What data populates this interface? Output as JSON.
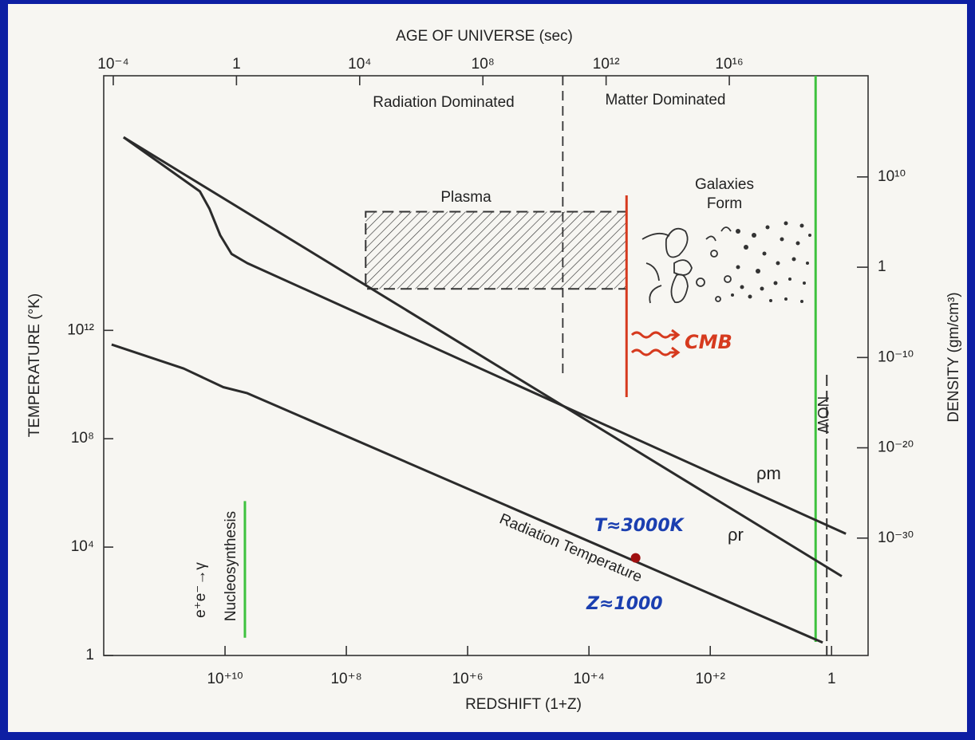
{
  "chart_data": {
    "type": "line",
    "title": "AGE OF UNIVERSE (sec)",
    "xlabel": "REDSHIFT (1+Z)",
    "ylabel": "TEMPERATURE (°K)",
    "y2label": "DENSITY (gm/cm³)",
    "xscale": "log",
    "yscale": "log",
    "y2scale": "log",
    "x2scale": "log",
    "xlim": [
      1000000000000.0,
      0.25
    ],
    "xticks": [
      {
        "value": 10000000000.0,
        "label": "10⁺¹⁰"
      },
      {
        "value": 100000000.0,
        "label": "10⁺⁸"
      },
      {
        "value": 1000000.0,
        "label": "10⁺⁶"
      },
      {
        "value": 10000.0,
        "label": "10⁺⁴"
      },
      {
        "value": 100,
        "label": "10⁺²"
      },
      1
    ],
    "x2lim": [
      4.9e-05,
      3.2e+20
    ],
    "x2ticks": [
      {
        "value": 0.0001,
        "label": "10⁻⁴"
      },
      1,
      {
        "value": 10000.0,
        "label": "10⁴"
      },
      {
        "value": 100000000.0,
        "label": "10⁸"
      },
      {
        "value": 1000000000000.0,
        "label": "10¹²"
      },
      {
        "value": 1e+16,
        "label": "10¹⁶"
      }
    ],
    "ylim": [
      1,
      2.5e+21
    ],
    "yticks": [
      1,
      {
        "value": 10000.0,
        "label": "10⁴"
      },
      {
        "value": 100000000.0,
        "label": "10⁸"
      },
      {
        "value": 1000000000000.0,
        "label": "10¹²"
      }
    ],
    "y2lim": [
      1e-43,
      1.6e+21
    ],
    "y2ticks": [
      {
        "value": 10000000000.0,
        "label": "10¹⁰"
      },
      1,
      {
        "value": 1e-10,
        "label": "10⁻¹⁰"
      },
      {
        "value": 1e-20,
        "label": "10⁻²⁰"
      },
      {
        "value": 1e-30,
        "label": "10⁻³⁰"
      }
    ],
    "series": [
      {
        "name": "Radiation Temperature",
        "color": "#2b2b2b",
        "x": [
          740000000000.0,
          48000000000.0,
          10700000000.0,
          4300000000.0,
          1.4
        ],
        "values": [
          300000000000.0,
          39000000000.0,
          8000000000.0,
          4800000000.0,
          3
        ]
      },
      {
        "name": "ρm",
        "color": "#2b2b2b",
        "axis": "y2",
        "x": [
          470000000000.0,
          26000000000.0,
          18000000000.0,
          12000000000.0,
          7800000000.0,
          4300000000.0,
          0.58
        ],
        "values": [
          250000000000000.0,
          250000000.0,
          2900000.0,
          3500,
          30,
          2.8,
          3e-30
        ]
      },
      {
        "name": "ρr",
        "color": "#2b2b2b",
        "axis": "y2",
        "x": [
          470000000000.0,
          0.68
        ],
        "values": [
          250000000000000.0,
          6e-35
        ]
      }
    ],
    "point": {
      "x": 1700,
      "y": 4000,
      "color": "#a01010",
      "labels": [
        "T≈3000K",
        "Z≈1000"
      ]
    },
    "eras": {
      "x": 27000,
      "labels": [
        "Radiation Dominated",
        "Matter Dominated"
      ]
    },
    "plasma": {
      "label": "Plasma",
      "x": [
        48000000.0,
        2400
      ],
      "y": [
        2.4e+16,
        34000000000000.0
      ]
    },
    "recombination": {
      "x": 2400,
      "color": "#d63a1e",
      "label": "CMB"
    },
    "galaxies": {
      "label": [
        "Galaxies",
        "Form"
      ]
    },
    "now": {
      "x": 1,
      "color": "#3ec23e",
      "label": "NOW"
    },
    "nucleosynthesis": {
      "x": 4700000000.0,
      "y": [
        500000.0,
        4.5
      ],
      "color": "#3ec23e",
      "labels": [
        "Nucleosynthesis",
        "e⁺e⁻→γ"
      ]
    }
  }
}
